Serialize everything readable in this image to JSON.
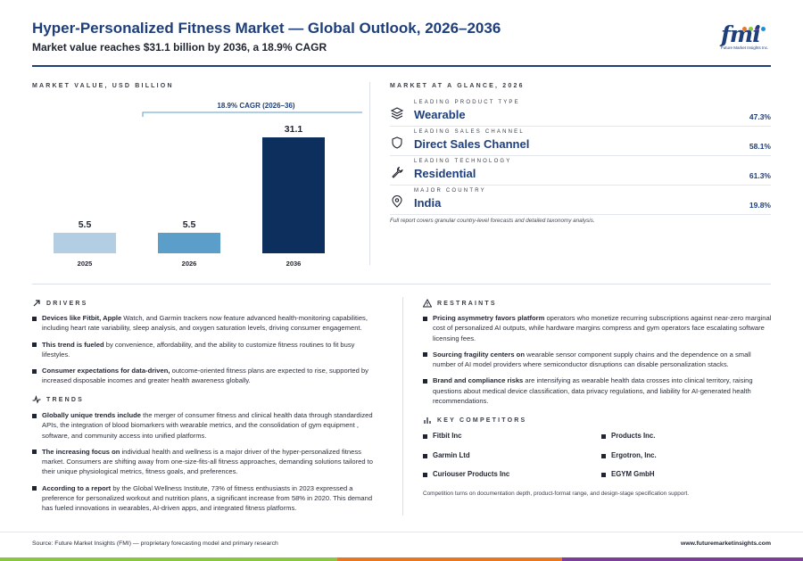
{
  "header": {
    "title": "Hyper-Personalized Fitness Market — Global Outlook, 2026–2036",
    "subtitle": "Market value reaches $31.1 billion by 2036, a 18.9% CAGR",
    "logo_text": "fmi",
    "logo_tagline": "Future Market Insights Inc."
  },
  "market_value": {
    "section_label": "MARKET VALUE, USD BILLION"
  },
  "chart_data": {
    "type": "bar",
    "categories": [
      "2025",
      "2026",
      "2036"
    ],
    "values": [
      5.5,
      5.5,
      31.1
    ],
    "data_labels": [
      "5.5",
      "5.5",
      "31.1"
    ],
    "annotation": "18.9% CAGR (2026–36)",
    "bar_colors": [
      "#b3cde3",
      "#5b9ec9",
      "#0d2f5e"
    ],
    "ylim": [
      0,
      31.1
    ],
    "grid": false,
    "title": "",
    "xlabel": "",
    "ylabel": ""
  },
  "glance": {
    "section_label": "MARKET AT A GLANCE, 2026",
    "items": [
      {
        "key": "LEADING PRODUCT TYPE",
        "value": "Wearable",
        "pct": "47.3%",
        "icon": "layers-icon"
      },
      {
        "key": "LEADING SALES CHANNEL",
        "value": "Direct Sales Channel",
        "pct": "58.1%",
        "icon": "shield-icon"
      },
      {
        "key": "LEADING TECHNOLOGY",
        "value": "Residential",
        "pct": "61.3%",
        "icon": "wrench-icon"
      },
      {
        "key": "MAJOR COUNTRY",
        "value": "India",
        "pct": "19.8%",
        "icon": "location-pin-icon"
      }
    ],
    "note": "Full report covers granular country-level forecasts and detailed taxonomy analysis."
  },
  "drivers": {
    "label": "DRIVERS",
    "items": [
      {
        "bold": "Devices like Fitbit, Apple",
        "text": " Watch, and Garmin trackers now feature advanced health-monitoring capabilities, including heart rate variability, sleep analysis, and oxygen saturation levels, driving consumer engagement."
      },
      {
        "bold": "This trend is fueled",
        "text": " by convenience, affordability, and the ability to customize fitness routines to fit busy lifestyles."
      },
      {
        "bold": "Consumer expectations for data-driven,",
        "text": " outcome-oriented fitness plans are expected to rise, supported by increased disposable incomes and greater health awareness globally."
      }
    ]
  },
  "trends": {
    "label": "TRENDS",
    "items": [
      {
        "bold": "Globally unique trends include",
        "text": " the merger of consumer fitness and clinical health data through standardized APIs, the integration of blood biomarkers with wearable metrics, and the consolidation of gym equipment , software, and community access into unified platforms."
      },
      {
        "bold": "The increasing focus on",
        "text": " individual health and wellness is a major driver of the hyper-personalized fitness market. Consumers are shifting away from one-size-fits-all fitness approaches, demanding solutions tailored to their unique physiological metrics, fitness goals, and preferences."
      },
      {
        "bold": "According to a report",
        "text": " by the Global Wellness Institute, 73% of fitness enthusiasts in 2023 expressed a preference for personalized workout and nutrition plans, a significant increase from 58% in 2020. This demand has fueled innovations in wearables, AI-driven apps, and integrated fitness platforms."
      }
    ]
  },
  "restraints": {
    "label": "RESTRAINTS",
    "items": [
      {
        "bold": "Pricing asymmetry favors platform",
        "text": " operators who monetize recurring subscriptions against near-zero marginal cost of personalized AI outputs, while hardware margins compress and gym operators face escalating software licensing fees."
      },
      {
        "bold": "Sourcing fragility centers on",
        "text": " wearable sensor component supply chains and the dependence on a small number of AI model providers where semiconductor disruptions can disable personalization stacks."
      },
      {
        "bold": "Brand and compliance risks",
        "text": " are intensifying as wearable health data crosses into clinical territory, raising questions about medical device classification, data privacy regulations, and liability for AI-generated health recommendations."
      }
    ]
  },
  "competitors": {
    "label": "KEY COMPETITORS",
    "items": [
      "Fitbit Inc",
      "Products Inc.",
      "Garmin Ltd",
      "Ergotron, Inc.",
      "Curiouser Products Inc",
      "EGYM GmbH"
    ],
    "note": "Competition turns on documentation depth, product-format range, and design-stage specification support."
  },
  "footer": {
    "source": "Source: Future Market Insights (FMI) — proprietary forecasting model and primary research",
    "url": "www.futuremarketinsights.com"
  },
  "colors": {
    "brand": "#1e3f7a",
    "stripe": [
      "#8cc63f",
      "#e87722",
      "#7b3f99"
    ]
  }
}
